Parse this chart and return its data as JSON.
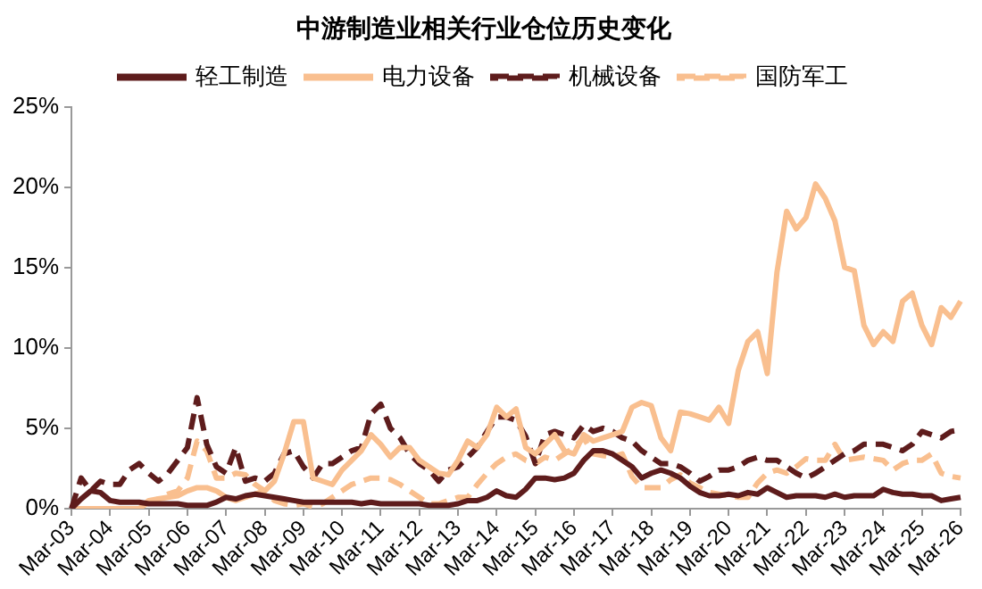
{
  "chart_data": {
    "type": "line",
    "title": "中游制造业相关行业仓位历史变化",
    "categories": [
      "Mar-03",
      null,
      null,
      null,
      "Mar-04",
      null,
      null,
      null,
      "Mar-05",
      null,
      null,
      null,
      "Mar-06",
      null,
      null,
      null,
      "Mar-07",
      null,
      null,
      null,
      "Mar-08",
      null,
      null,
      null,
      "Mar-09",
      null,
      null,
      null,
      "Mar-10",
      null,
      null,
      null,
      "Mar-11",
      null,
      null,
      null,
      "Mar-12",
      null,
      null,
      null,
      "Mar-13",
      null,
      null,
      null,
      "Mar-14",
      null,
      null,
      null,
      "Mar-15",
      null,
      null,
      null,
      "Mar-16",
      null,
      null,
      null,
      "Mar-17",
      null,
      null,
      null,
      "Mar-18",
      null,
      null,
      null,
      "Mar-19",
      null,
      null,
      null,
      "Mar-20",
      null,
      null,
      null,
      "Mar-21",
      null,
      null,
      null,
      "Mar-22",
      null,
      null,
      null,
      "Mar-23",
      null,
      null,
      null,
      "Mar-24",
      null,
      null,
      null,
      "Mar-25",
      null,
      null,
      null,
      "Mar-26"
    ],
    "series": [
      {
        "name": "轻工制造",
        "color": "#5e1c1c",
        "line_style": "solid",
        "values": [
          0,
          0.6,
          1.1,
          1.0,
          0.5,
          0.4,
          0.4,
          0.4,
          0.3,
          0.3,
          0.3,
          0.3,
          0.2,
          0.2,
          0.2,
          0.4,
          0.7,
          0.6,
          0.8,
          0.9,
          0.8,
          0.7,
          0.6,
          0.5,
          0.4,
          0.4,
          0.4,
          0.4,
          0.4,
          0.4,
          0.3,
          0.4,
          0.3,
          0.3,
          0.3,
          0.3,
          0.3,
          0.2,
          0.2,
          0.2,
          0.3,
          0.5,
          0.5,
          0.7,
          1.1,
          0.8,
          0.7,
          1.2,
          1.9,
          1.9,
          1.8,
          1.9,
          2.2,
          3.0,
          3.6,
          3.6,
          3.4,
          3.0,
          2.6,
          1.9,
          2.2,
          2.4,
          2.2,
          1.9,
          1.4,
          1.0,
          0.8,
          0.8,
          0.9,
          0.8,
          1.0,
          0.9,
          1.3,
          1.0,
          0.7,
          0.8,
          0.8,
          0.8,
          0.7,
          0.9,
          0.7,
          0.8,
          0.8,
          0.8,
          1.2,
          1.0,
          0.9,
          0.9,
          0.8,
          0.8,
          0.5,
          0.6,
          0.7
        ]
      },
      {
        "name": "电力设备",
        "color": "#f9bf8f",
        "line_style": "solid",
        "values": [
          0,
          0,
          0,
          0,
          0,
          0,
          0,
          0,
          0.4,
          0.6,
          0.7,
          0.8,
          1.1,
          1.3,
          1.3,
          1.1,
          0.7,
          0.5,
          0.7,
          0.9,
          1.1,
          1.7,
          3.4,
          5.4,
          5.4,
          1.9,
          1.7,
          1.5,
          2.4,
          3.0,
          3.6,
          4.6,
          4.0,
          3.2,
          3.8,
          3.8,
          3.0,
          2.6,
          2.2,
          2.1,
          3.0,
          4.2,
          3.8,
          4.6,
          6.3,
          5.7,
          6.2,
          3.8,
          3.4,
          4.0,
          4.6,
          3.6,
          3.4,
          4.6,
          4.2,
          4.4,
          4.6,
          4.8,
          6.3,
          6.6,
          6.4,
          4.4,
          3.6,
          6.0,
          5.9,
          5.7,
          5.5,
          6.3,
          5.3,
          8.6,
          10.4,
          11.0,
          8.4,
          14.7,
          18.5,
          17.4,
          18.1,
          20.2,
          19.3,
          17.9,
          15.0,
          14.8,
          11.4,
          10.2,
          11.0,
          10.4,
          12.9,
          13.4,
          11.4,
          10.2,
          12.5,
          11.9,
          12.9
        ]
      },
      {
        "name": "机械设备",
        "color": "#5e1c1c",
        "line_style": "dashed",
        "values": [
          0,
          1.9,
          1.1,
          1.7,
          1.5,
          1.5,
          2.4,
          2.8,
          2.2,
          1.7,
          2.2,
          3.0,
          3.8,
          6.9,
          4.0,
          2.6,
          2.2,
          3.8,
          1.7,
          1.9,
          1.7,
          2.2,
          3.4,
          3.6,
          2.6,
          1.9,
          2.8,
          2.8,
          3.2,
          3.6,
          3.8,
          5.9,
          6.5,
          5.0,
          4.4,
          3.4,
          2.8,
          2.4,
          1.7,
          2.4,
          2.6,
          3.2,
          3.8,
          4.8,
          5.7,
          5.7,
          5.5,
          4.5,
          2.8,
          4.6,
          4.8,
          4.6,
          4.4,
          5.2,
          4.8,
          5.0,
          4.8,
          4.4,
          4.2,
          3.6,
          3.2,
          2.8,
          2.8,
          2.6,
          2.2,
          1.7,
          2.0,
          2.4,
          2.4,
          2.6,
          3.0,
          3.2,
          3.0,
          3.0,
          2.6,
          2.2,
          1.9,
          2.2,
          2.6,
          3.0,
          3.4,
          3.6,
          4.0,
          4.0,
          4.0,
          3.8,
          3.6,
          4.0,
          4.8,
          4.6,
          4.4,
          4.8,
          4.9
        ]
      },
      {
        "name": "国防军工",
        "color": "#f9bf8f",
        "line_style": "dashed",
        "values": [
          0,
          0,
          0,
          0,
          0,
          0,
          0,
          0,
          0.5,
          0.6,
          0.9,
          1.1,
          1.9,
          4.2,
          3.6,
          1.9,
          1.9,
          2.2,
          2.1,
          1.5,
          1.1,
          0.5,
          0.3,
          0.2,
          0.3,
          0.1,
          0.3,
          0.7,
          1.1,
          1.5,
          1.7,
          1.9,
          1.9,
          1.8,
          1.5,
          1.1,
          0.7,
          0.3,
          0.3,
          0.5,
          0.7,
          0.7,
          1.5,
          2.2,
          2.8,
          3.2,
          3.4,
          3.0,
          2.8,
          3.2,
          3.0,
          3.4,
          3.8,
          4.4,
          3.4,
          3.3,
          3.2,
          3.4,
          2.0,
          1.3,
          1.3,
          1.3,
          1.8,
          2.1,
          1.6,
          1.3,
          1.0,
          0.9,
          0.8,
          0.7,
          0.7,
          1.6,
          2.2,
          2.4,
          2.2,
          2.6,
          3.1,
          3.0,
          3.0,
          4.0,
          3.0,
          3.1,
          3.2,
          3.1,
          3.0,
          2.4,
          2.8,
          3.0,
          3.0,
          3.4,
          2.2,
          2.0,
          1.9
        ]
      }
    ],
    "ylim": [
      0,
      25
    ],
    "yticks": [
      {
        "value": 0,
        "label": "0%"
      },
      {
        "value": 5,
        "label": "5%"
      },
      {
        "value": 10,
        "label": "10%"
      },
      {
        "value": 15,
        "label": "15%"
      },
      {
        "value": 20,
        "label": "20%"
      },
      {
        "value": 25,
        "label": "25%"
      }
    ],
    "legend": "top",
    "marker": "none"
  }
}
